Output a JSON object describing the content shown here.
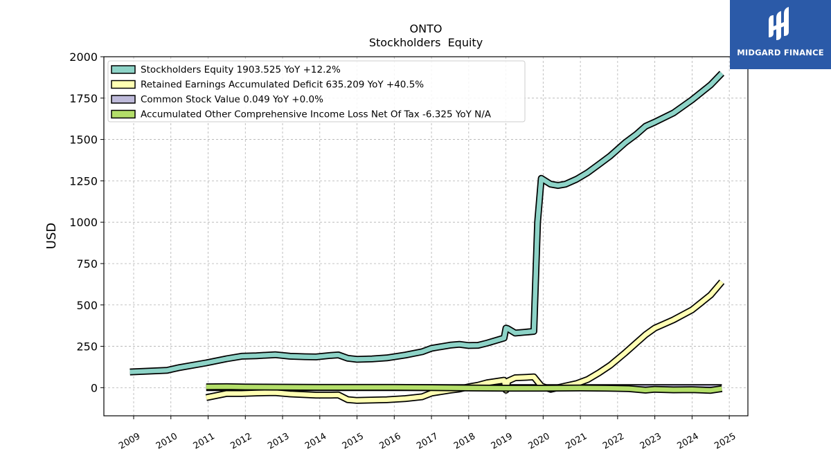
{
  "chart_data": {
    "type": "line",
    "title": "ONTO",
    "subtitle": "Stockholders  Equity",
    "ylabel": "USD",
    "xlabel": "",
    "xlim": [
      2008.2,
      2025.5
    ],
    "ylim": [
      -170,
      2000
    ],
    "yticks": [
      0,
      250,
      500,
      750,
      1000,
      1250,
      1500,
      1750,
      2000
    ],
    "xticks": [
      "2009",
      "2010",
      "2011",
      "2012",
      "2013",
      "2014",
      "2015",
      "2016",
      "2017",
      "2018",
      "2019",
      "2020",
      "2021",
      "2022",
      "2023",
      "2024",
      "2025"
    ],
    "grid": true,
    "legend_position": "top-left",
    "series": [
      {
        "name": "Stockholders Equity",
        "legend": "Stockholders Equity  1903.525 YoY +12.2%",
        "color": "#8dd3c7",
        "points": [
          [
            2008.9,
            95
          ],
          [
            2009.9,
            105
          ],
          [
            2010.2,
            120
          ],
          [
            2010.95,
            150
          ],
          [
            2011.5,
            175
          ],
          [
            2011.9,
            190
          ],
          [
            2012.3,
            193
          ],
          [
            2012.8,
            199
          ],
          [
            2013.2,
            190
          ],
          [
            2013.6,
            187
          ],
          [
            2013.9,
            186
          ],
          [
            2014.3,
            195
          ],
          [
            2014.5,
            198
          ],
          [
            2014.75,
            178
          ],
          [
            2015.0,
            171
          ],
          [
            2015.4,
            174
          ],
          [
            2015.8,
            180
          ],
          [
            2016.3,
            197
          ],
          [
            2016.75,
            217
          ],
          [
            2017.0,
            238
          ],
          [
            2017.5,
            257
          ],
          [
            2017.75,
            262
          ],
          [
            2018.0,
            255
          ],
          [
            2018.25,
            256
          ],
          [
            2018.5,
            270
          ],
          [
            2018.95,
            300
          ],
          [
            2019.0,
            360
          ],
          [
            2019.05,
            357
          ],
          [
            2019.25,
            330
          ],
          [
            2019.5,
            335
          ],
          [
            2019.75,
            340
          ],
          [
            2019.85,
            1000
          ],
          [
            2019.95,
            1265
          ],
          [
            2020.2,
            1230
          ],
          [
            2020.4,
            1222
          ],
          [
            2020.6,
            1230
          ],
          [
            2020.9,
            1260
          ],
          [
            2021.2,
            1300
          ],
          [
            2021.5,
            1350
          ],
          [
            2021.8,
            1400
          ],
          [
            2022.2,
            1480
          ],
          [
            2022.5,
            1530
          ],
          [
            2022.75,
            1580
          ],
          [
            2023.0,
            1605
          ],
          [
            2023.5,
            1660
          ],
          [
            2024.0,
            1740
          ],
          [
            2024.5,
            1830
          ],
          [
            2024.8,
            1900
          ]
        ]
      },
      {
        "name": "Retained Earnings Accumulated Deficit",
        "legend": "Retained Earnings Accumulated Deficit  635.209 YoY +40.5%",
        "color": "#ffffb3",
        "points": [
          [
            2010.95,
            -60
          ],
          [
            2011.5,
            -35
          ],
          [
            2011.9,
            -35
          ],
          [
            2012.3,
            -32
          ],
          [
            2012.8,
            -30
          ],
          [
            2013.2,
            -38
          ],
          [
            2013.6,
            -42
          ],
          [
            2013.9,
            -45
          ],
          [
            2014.3,
            -45
          ],
          [
            2014.5,
            -44
          ],
          [
            2014.75,
            -72
          ],
          [
            2015.0,
            -77
          ],
          [
            2015.4,
            -75
          ],
          [
            2015.8,
            -73
          ],
          [
            2016.3,
            -66
          ],
          [
            2016.75,
            -55
          ],
          [
            2017.0,
            -33
          ],
          [
            2017.5,
            -15
          ],
          [
            2017.75,
            -8
          ],
          [
            2018.0,
            5
          ],
          [
            2018.25,
            15
          ],
          [
            2018.5,
            30
          ],
          [
            2018.95,
            45
          ],
          [
            2019.0,
            -15
          ],
          [
            2019.05,
            40
          ],
          [
            2019.25,
            60
          ],
          [
            2019.5,
            62
          ],
          [
            2019.75,
            65
          ],
          [
            2019.95,
            10
          ],
          [
            2020.2,
            -10
          ],
          [
            2020.5,
            5
          ],
          [
            2020.9,
            25
          ],
          [
            2021.2,
            50
          ],
          [
            2021.5,
            90
          ],
          [
            2021.8,
            135
          ],
          [
            2022.2,
            210
          ],
          [
            2022.5,
            270
          ],
          [
            2022.75,
            320
          ],
          [
            2023.0,
            360
          ],
          [
            2023.5,
            410
          ],
          [
            2024.0,
            470
          ],
          [
            2024.5,
            560
          ],
          [
            2024.8,
            640
          ]
        ]
      },
      {
        "name": "Common Stock Value",
        "legend": "Common Stock Value  0.049 YoY +0.0%",
        "color": "#bebada",
        "points": [
          [
            2010.95,
            0
          ],
          [
            2012.5,
            0
          ],
          [
            2014.5,
            0
          ],
          [
            2016.5,
            0
          ],
          [
            2018.5,
            0
          ],
          [
            2020.5,
            0
          ],
          [
            2022.5,
            0
          ],
          [
            2024.8,
            0
          ]
        ]
      },
      {
        "name": "Accumulated Other Comprehensive Income Loss Net Of Tax",
        "legend": "Accumulated Other Comprehensive Income Loss Net Of Tax  -6.325 YoY N/A",
        "color": "#b3de69",
        "points": [
          [
            2010.95,
            5
          ],
          [
            2011.5,
            6
          ],
          [
            2012.0,
            4
          ],
          [
            2013.0,
            3
          ],
          [
            2014.0,
            2
          ],
          [
            2015.0,
            2
          ],
          [
            2016.0,
            2
          ],
          [
            2017.0,
            0
          ],
          [
            2018.0,
            -2
          ],
          [
            2019.0,
            -3
          ],
          [
            2020.0,
            -3
          ],
          [
            2021.0,
            -2
          ],
          [
            2021.7,
            -3
          ],
          [
            2022.3,
            -6
          ],
          [
            2022.75,
            -15
          ],
          [
            2023.0,
            -10
          ],
          [
            2023.5,
            -13
          ],
          [
            2024.0,
            -12
          ],
          [
            2024.5,
            -16
          ],
          [
            2024.8,
            -6
          ]
        ]
      }
    ]
  },
  "logo": {
    "text": "MIDGARD FINANCE",
    "background": "#2b5aa8"
  }
}
